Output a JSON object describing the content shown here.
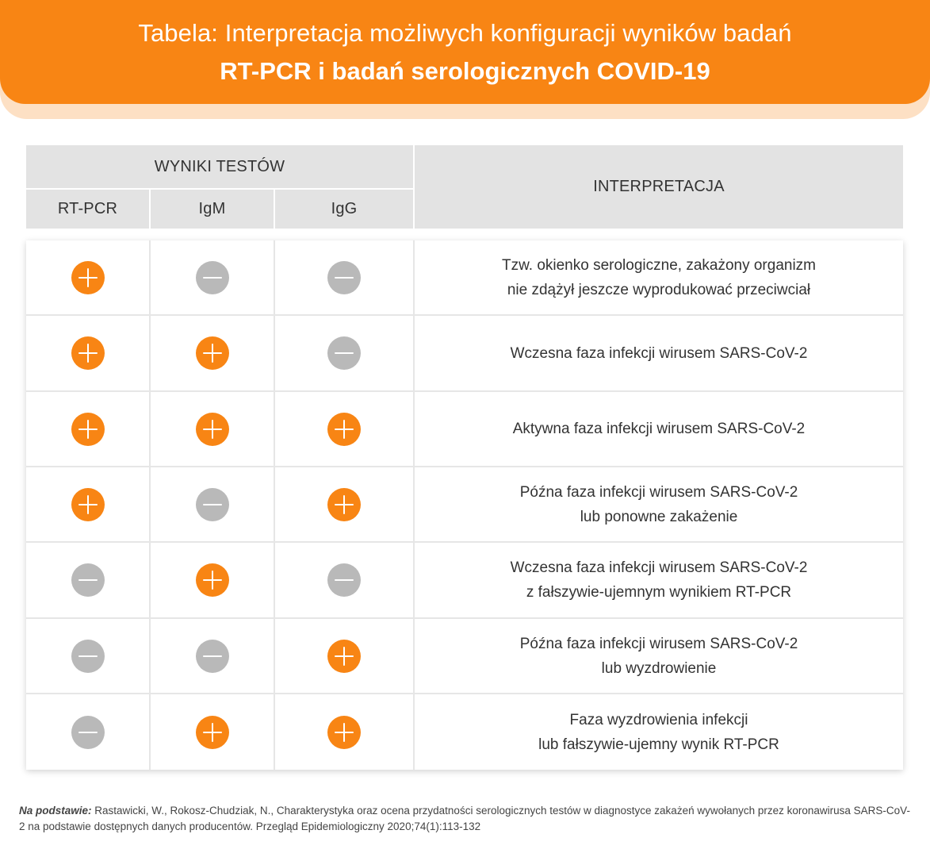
{
  "header": {
    "title_line1": "Tabela: Interpretacja możliwych konfiguracji wyników badań",
    "title_line2": "RT-PCR i badań serologicznych COVID-19"
  },
  "table": {
    "group_header": "WYNIKI TESTÓW",
    "columns": [
      "RT-PCR",
      "IgM",
      "IgG"
    ],
    "interpretation_header": "INTERPRETACJA",
    "rows": [
      {
        "rtpcr": "plus",
        "igm": "minus",
        "igg": "minus",
        "text": "Tzw. okienko serologiczne, zakażony organizm\nnie zdążył jeszcze wyprodukować przeciwciał"
      },
      {
        "rtpcr": "plus",
        "igm": "plus",
        "igg": "minus",
        "text": "Wczesna faza infekcji wirusem SARS-CoV-2"
      },
      {
        "rtpcr": "plus",
        "igm": "plus",
        "igg": "plus",
        "text": "Aktywna faza infekcji wirusem SARS-CoV-2"
      },
      {
        "rtpcr": "plus",
        "igm": "minus",
        "igg": "plus",
        "text": "Późna faza infekcji wirusem SARS-CoV-2\nlub ponowne zakażenie"
      },
      {
        "rtpcr": "minus",
        "igm": "plus",
        "igg": "minus",
        "text": "Wczesna faza infekcji wirusem SARS-CoV-2\nz fałszywie-ujemnym wynikiem RT-PCR"
      },
      {
        "rtpcr": "minus",
        "igm": "minus",
        "igg": "plus",
        "text": "Późna faza infekcji wirusem SARS-CoV-2\nlub wyzdrowienie"
      },
      {
        "rtpcr": "minus",
        "igm": "plus",
        "igg": "plus",
        "text": "Faza wyzdrowienia infekcji\nlub fałszywie-ujemny wynik RT-PCR"
      }
    ]
  },
  "footer": {
    "lead": "Na podstawie:",
    "text": " Rastawicki, W., Rokosz-Chudziak, N., Charakterystyka oraz ocena przydatności serologicznych testów w diagnostyce zakażeń wywołanych przez koronawirusa SARS-CoV-2 na podstawie dostępnych danych producentów. Przegląd Epidemiologiczny 2020;74(1):113-132"
  },
  "colors": {
    "accent": "#f88514",
    "negative": "#b9b9b9",
    "header_bg": "#e3e3e3"
  },
  "icons": {
    "plus": "plus-circle-icon",
    "minus": "minus-circle-icon"
  }
}
